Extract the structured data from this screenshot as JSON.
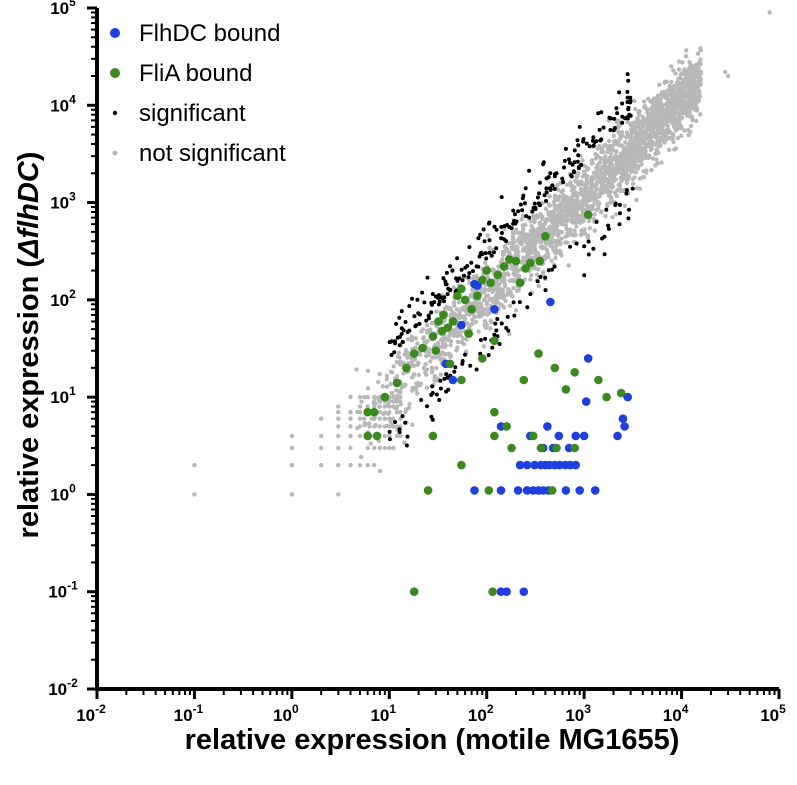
{
  "chart_data": {
    "type": "scatter",
    "title": "",
    "xlabel": "relative expression (motile MG1655)",
    "ylabel_parts": [
      "relative expression (",
      "ΔflhDC",
      ")"
    ],
    "xscale": "log",
    "yscale": "log",
    "xlim": [
      0.01,
      100000
    ],
    "ylim": [
      0.01,
      100000
    ],
    "tick_exponents": [
      "-2",
      "-1",
      "0",
      "1",
      "2",
      "3",
      "4",
      "5"
    ],
    "tick_base": "10",
    "grid": false,
    "legend_position": "top-left",
    "series": [
      {
        "name": "FlhDC bound",
        "color": "#1f3fe0",
        "marker": "large-dot",
        "points": [
          [
            55,
            55
          ],
          [
            120,
            80
          ],
          [
            450,
            95
          ],
          [
            75,
            145
          ],
          [
            38,
            22
          ],
          [
            45,
            15
          ],
          [
            80,
            140
          ],
          [
            140,
            5
          ],
          [
            280,
            4
          ],
          [
            380,
            3
          ],
          [
            420,
            5
          ],
          [
            480,
            3
          ],
          [
            550,
            4
          ],
          [
            700,
            3
          ],
          [
            820,
            4
          ],
          [
            1000,
            4
          ],
          [
            1100,
            25
          ],
          [
            1050,
            9
          ],
          [
            2500,
            6
          ],
          [
            2800,
            10
          ],
          [
            2600,
            5
          ],
          [
            2200,
            4
          ],
          [
            220,
            2
          ],
          [
            260,
            2
          ],
          [
            310,
            2
          ],
          [
            360,
            2
          ],
          [
            400,
            2
          ],
          [
            440,
            2
          ],
          [
            500,
            2
          ],
          [
            560,
            2
          ],
          [
            640,
            2
          ],
          [
            720,
            2
          ],
          [
            820,
            2
          ],
          [
            75,
            1.1
          ],
          [
            140,
            1.1
          ],
          [
            210,
            1.1
          ],
          [
            260,
            1.1
          ],
          [
            300,
            1.1
          ],
          [
            340,
            1.1
          ],
          [
            380,
            1.1
          ],
          [
            430,
            1.1
          ],
          [
            650,
            1.1
          ],
          [
            900,
            1.1
          ],
          [
            1300,
            1.1
          ],
          [
            140,
            0.1
          ],
          [
            160,
            0.1
          ],
          [
            240,
            0.1
          ]
        ]
      },
      {
        "name": "FliA bound",
        "color": "#3a8a1e",
        "marker": "large-dot",
        "points": [
          [
            6,
            7
          ],
          [
            7,
            7
          ],
          [
            6,
            4
          ],
          [
            7.5,
            4
          ],
          [
            9,
            10
          ],
          [
            12,
            14
          ],
          [
            15,
            20
          ],
          [
            18,
            28
          ],
          [
            22,
            32
          ],
          [
            28,
            42
          ],
          [
            32,
            60
          ],
          [
            36,
            70
          ],
          [
            40,
            52
          ],
          [
            45,
            60
          ],
          [
            50,
            110
          ],
          [
            55,
            130
          ],
          [
            60,
            100
          ],
          [
            70,
            80
          ],
          [
            80,
            110
          ],
          [
            90,
            160
          ],
          [
            100,
            200
          ],
          [
            110,
            150
          ],
          [
            130,
            180
          ],
          [
            150,
            220
          ],
          [
            170,
            260
          ],
          [
            200,
            250
          ],
          [
            220,
            150
          ],
          [
            250,
            210
          ],
          [
            280,
            240
          ],
          [
            350,
            250
          ],
          [
            400,
            450
          ],
          [
            1100,
            750
          ],
          [
            42,
            22
          ],
          [
            55,
            15
          ],
          [
            30,
            30
          ],
          [
            35,
            48
          ],
          [
            65,
            45
          ],
          [
            120,
            38
          ],
          [
            90,
            25
          ],
          [
            340,
            28
          ],
          [
            240,
            15
          ],
          [
            500,
            20
          ],
          [
            800,
            18
          ],
          [
            650,
            12
          ],
          [
            1400,
            15
          ],
          [
            1700,
            10
          ],
          [
            2400,
            11
          ],
          [
            28,
            4
          ],
          [
            55,
            2
          ],
          [
            120,
            7
          ],
          [
            160,
            5
          ],
          [
            120,
            4
          ],
          [
            180,
            3
          ],
          [
            300,
            4
          ],
          [
            360,
            3
          ],
          [
            520,
            3
          ],
          [
            800,
            3
          ],
          [
            25,
            1.1
          ],
          [
            105,
            1.1
          ],
          [
            470,
            1.1
          ],
          [
            18,
            0.1
          ],
          [
            115,
            0.1
          ]
        ]
      }
    ]
  }
}
